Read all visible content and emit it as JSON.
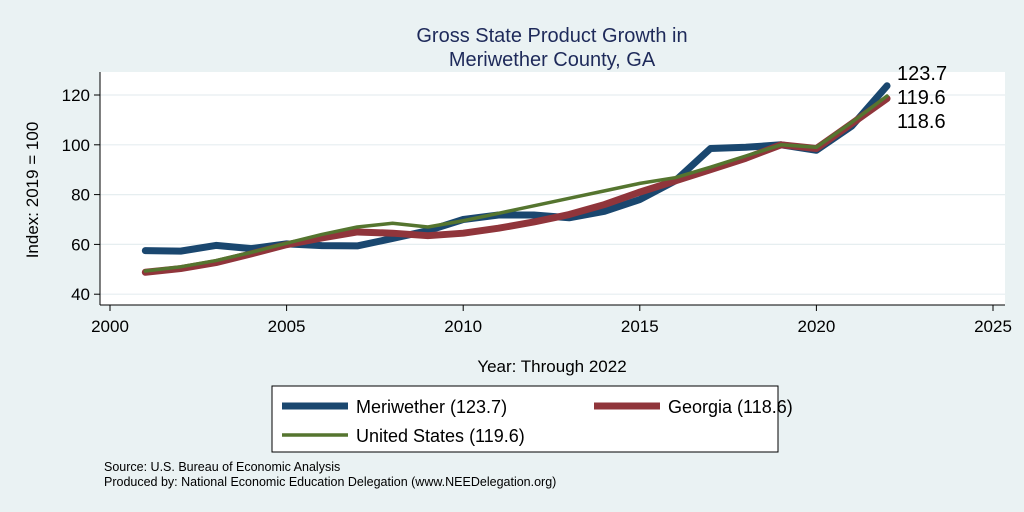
{
  "chart_data": {
    "type": "line",
    "title": [
      "Gross State Product Growth in",
      "Meriwether County, GA"
    ],
    "xlabel": "Year: Through 2022",
    "ylabel": "Index: 2019 = 100",
    "xlim": [
      2000,
      2025
    ],
    "ylim": [
      37,
      128
    ],
    "xticks": [
      2000,
      2005,
      2010,
      2015,
      2020,
      2025
    ],
    "yticks": [
      40,
      60,
      80,
      100,
      120
    ],
    "grid": true,
    "legend_placement": "bottom",
    "x": [
      2001,
      2002,
      2003,
      2004,
      2005,
      2006,
      2007,
      2008,
      2009,
      2010,
      2011,
      2012,
      2013,
      2014,
      2015,
      2016,
      2017,
      2018,
      2019,
      2020,
      2021,
      2022
    ],
    "series": [
      {
        "name": "Meriwether  (123.7)",
        "color": "#1a476f",
        "width": 7,
        "end_label": "123.7",
        "values": [
          57.5,
          57.3,
          59.6,
          58.3,
          60.2,
          59.5,
          59.4,
          62.4,
          65.5,
          70,
          71.8,
          71.8,
          70.7,
          73.3,
          78,
          85.5,
          98.5,
          99,
          100,
          97.8,
          107.5,
          123.7
        ]
      },
      {
        "name": "Georgia (118.6)",
        "color": "#90353b",
        "width": 7,
        "end_label": "118.6",
        "values": [
          48.8,
          50.3,
          52.7,
          56.2,
          59.9,
          62.6,
          65,
          64.5,
          63.5,
          64.5,
          66.5,
          69,
          72,
          76,
          81,
          85.5,
          90,
          94.6,
          100,
          98.5,
          108.5,
          118.6
        ]
      },
      {
        "name": "United States (119.6)",
        "color": "#55752f",
        "width": 3.5,
        "end_label": "119.6",
        "values": [
          49.3,
          51,
          53.5,
          56.8,
          60.5,
          64,
          67,
          68.5,
          67,
          69.5,
          72.5,
          75.5,
          78.5,
          81.5,
          84.5,
          86.8,
          91,
          95.5,
          100,
          99,
          109,
          119.6
        ]
      }
    ]
  },
  "notes": [
    "Source: U.S. Bureau of Economic Analysis",
    "Produced by: National Economic Education Delegation (www.NEEDelegation.org)"
  ]
}
